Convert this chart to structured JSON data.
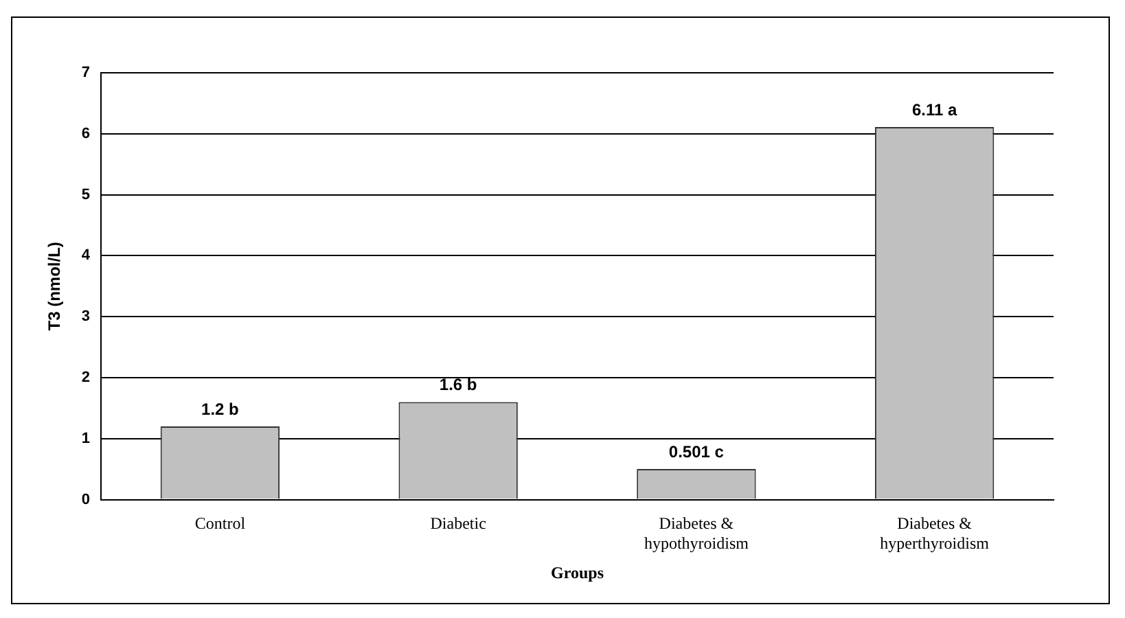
{
  "chart_data": {
    "type": "bar",
    "xlabel": "Groups",
    "ylabel": "T3 (nmol/L)",
    "categories": [
      "Control",
      "Diabetic",
      "Diabetes & hypothyroidism",
      "Diabetes & hyperthyroidism"
    ],
    "values": [
      1.2,
      1.6,
      0.501,
      6.11
    ],
    "color": "#c0c0c0",
    "value_labels": [
      "1.2 b",
      "1.6 b",
      "0.501 c",
      "6.11 a"
    ],
    "ylim": [
      0,
      7
    ],
    "yticks": [
      0,
      1,
      2,
      3,
      4,
      5,
      6,
      7
    ],
    "grid": "y"
  }
}
